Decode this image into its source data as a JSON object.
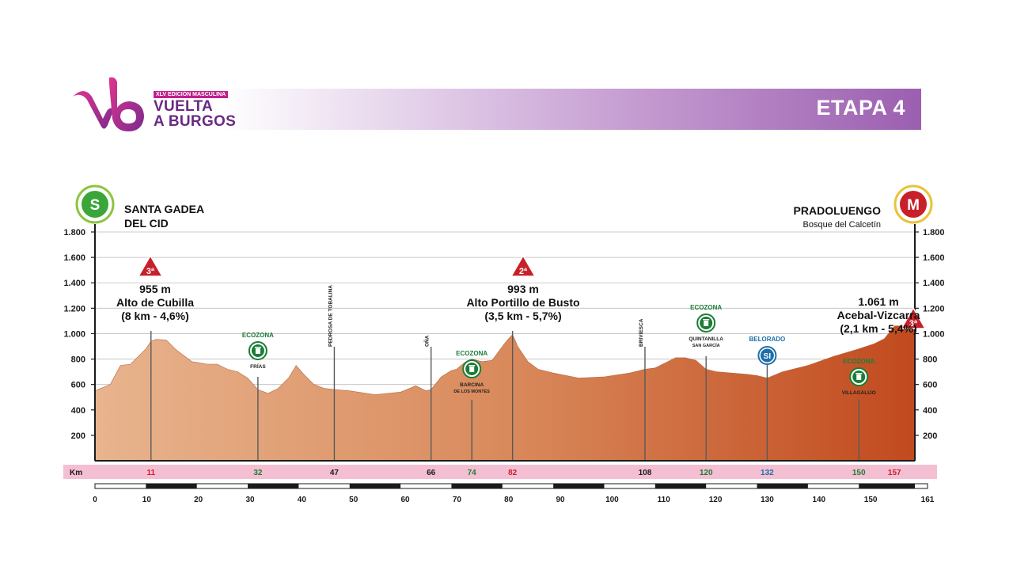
{
  "header": {
    "edition": "XLV EDICIÓN MASCULINA",
    "race_line1": "VUELTA",
    "race_line2": "A BURGOS",
    "stage": "ETAPA 4",
    "colors": {
      "brand_pink": "#c0208c",
      "brand_purple": "#6a2a82",
      "band_end": "#9b5fb0"
    }
  },
  "start": {
    "badge": "S",
    "name_line1": "SANTA GADEA",
    "name_line2": "DEL CID",
    "badge_color": "#3aa63a"
  },
  "finish": {
    "badge": "M",
    "name_line1": "PRADOLUENGO",
    "name_line2": "Bosque del Calcetín",
    "badge_color": "#c8202a"
  },
  "climbs": [
    {
      "cat": "3ª",
      "km": 11,
      "alt_label": "955 m",
      "name": "Alto de Cubilla",
      "detail": "(8 km - 4,6%)"
    },
    {
      "cat": "2ª",
      "km": 82,
      "alt_label": "993 m",
      "name": "Alto Portillo de Busto",
      "detail": "(3,5 km - 5,7%)"
    },
    {
      "cat": "3ª",
      "km": 157,
      "alt_label": "1.061 m",
      "name": "Acebal-Vizcarra",
      "detail": "(2,1 km - 5,4%)"
    }
  ],
  "pois": [
    {
      "km": 32,
      "label": "FRÍAS",
      "type": "ecozona",
      "tag": "ECOZONA"
    },
    {
      "km": 47,
      "label": "PEDROSA DE TOBALINA",
      "type": "vertical"
    },
    {
      "km": 66,
      "label": "OÑA",
      "type": "vertical"
    },
    {
      "km": 74,
      "label": "BARCINA DE LOS MONTES",
      "type": "ecozona",
      "tag": "ECOZONA"
    },
    {
      "km": 108,
      "label": "BRIVIESCA",
      "type": "vertical"
    },
    {
      "km": 120,
      "label": "QUINTANILLA SAN GARCÍA",
      "type": "ecozona",
      "tag": "ECOZONA"
    },
    {
      "km": 132,
      "label": "BELORADO",
      "type": "sprint",
      "tag": "SI"
    },
    {
      "km": 150,
      "label": "VILLAGALIJO",
      "type": "ecozona",
      "tag": "ECOZONA"
    }
  ],
  "km_strip": {
    "title": "Km",
    "marks": [
      {
        "km": 11,
        "color": "#c8202a"
      },
      {
        "km": 32,
        "color": "#1a7d35"
      },
      {
        "km": 47,
        "color": "#1a1a1a"
      },
      {
        "km": 66,
        "color": "#1a1a1a"
      },
      {
        "km": 74,
        "color": "#1a7d35"
      },
      {
        "km": 82,
        "color": "#c8202a"
      },
      {
        "km": 108,
        "color": "#1a1a1a"
      },
      {
        "km": 120,
        "color": "#1a7d35"
      },
      {
        "km": 132,
        "color": "#1e6fa8"
      },
      {
        "km": 150,
        "color": "#1a7d35"
      },
      {
        "km": 157,
        "color": "#c8202a"
      }
    ]
  },
  "chart_data": {
    "type": "area",
    "title": "ETAPA 4",
    "xlabel": "",
    "ylabel": "",
    "xlim": [
      0,
      161
    ],
    "ylim": [
      0,
      1800
    ],
    "x_ticks": [
      0,
      10,
      20,
      30,
      40,
      50,
      60,
      70,
      80,
      90,
      100,
      110,
      120,
      130,
      140,
      150,
      161
    ],
    "y_ticks": [
      200,
      400,
      600,
      800,
      1000,
      1200,
      1400,
      1600,
      1800
    ],
    "y_tick_labels": [
      "200",
      "400",
      "600",
      "800",
      "1.000",
      "1.200",
      "1.400",
      "1.600",
      "1.800"
    ],
    "grid": true,
    "series": [
      {
        "x": [
          0,
          3,
          5,
          7,
          10,
          11,
          12,
          14,
          16,
          19,
          22,
          24,
          26,
          28,
          30,
          32,
          34,
          36,
          38,
          39.5,
          41,
          43,
          45,
          47,
          50,
          55,
          60,
          63,
          65,
          66,
          68,
          70,
          71,
          72.5,
          74,
          76,
          78,
          80,
          81,
          82,
          83,
          85,
          87,
          90,
          95,
          100,
          105,
          108,
          110,
          112,
          114,
          116,
          118,
          120,
          122,
          125,
          128,
          130,
          132,
          135,
          140,
          145,
          150,
          153,
          155,
          157
        ],
        "y": [
          550,
          600,
          750,
          760,
          880,
          940,
          955,
          950,
          870,
          780,
          760,
          760,
          720,
          700,
          650,
          560,
          530,
          570,
          650,
          750,
          680,
          600,
          570,
          560,
          550,
          520,
          540,
          590,
          550,
          560,
          660,
          710,
          720,
          770,
          800,
          780,
          790,
          900,
          950,
          993,
          900,
          780,
          720,
          690,
          650,
          660,
          690,
          720,
          730,
          770,
          810,
          810,
          790,
          720,
          700,
          690,
          680,
          670,
          650,
          700,
          750,
          820,
          880,
          920,
          960,
          1061
        ]
      }
    ]
  }
}
